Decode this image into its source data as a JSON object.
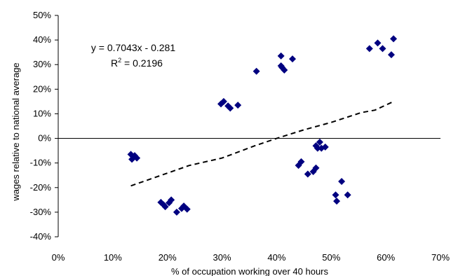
{
  "chart_data": {
    "type": "scatter",
    "xlabel": "% of occupation working over 40 hours",
    "ylabel": "wages relative to national average",
    "xlim": [
      0,
      70
    ],
    "ylim": [
      -40,
      50
    ],
    "x_ticks": [
      0,
      10,
      20,
      30,
      40,
      50,
      60,
      70
    ],
    "y_ticks": [
      -40,
      -30,
      -20,
      -10,
      0,
      10,
      20,
      30,
      40,
      50
    ],
    "x_tick_labels": [
      "0%",
      "10%",
      "20%",
      "30%",
      "40%",
      "50%",
      "60%",
      "70%"
    ],
    "y_tick_labels": [
      "-40%",
      "-30%",
      "-20%",
      "-10%",
      "0%",
      "10%",
      "20%",
      "30%",
      "40%",
      "50%"
    ],
    "marker_color": "#000080",
    "grid": false,
    "legend": "none",
    "annotation": {
      "line1": "y = 0.7043x - 0.281",
      "line2_prefix": "R",
      "line2_sup": "2",
      "line2_suffix": " = 0.2196"
    },
    "points": [
      {
        "x": 13.3,
        "y": -6.5
      },
      {
        "x": 14.0,
        "y": -7.0
      },
      {
        "x": 14.4,
        "y": -8.0
      },
      {
        "x": 13.5,
        "y": -8.5
      },
      {
        "x": 18.8,
        "y": -26.0
      },
      {
        "x": 19.3,
        "y": -27.0
      },
      {
        "x": 19.6,
        "y": -27.8
      },
      {
        "x": 20.3,
        "y": -26.2
      },
      {
        "x": 20.7,
        "y": -25.0
      },
      {
        "x": 21.7,
        "y": -30.0
      },
      {
        "x": 22.6,
        "y": -28.5
      },
      {
        "x": 23.0,
        "y": -27.5
      },
      {
        "x": 23.6,
        "y": -28.8
      },
      {
        "x": 29.8,
        "y": 14.0
      },
      {
        "x": 30.3,
        "y": 15.0
      },
      {
        "x": 31.1,
        "y": 13.2
      },
      {
        "x": 31.5,
        "y": 12.3
      },
      {
        "x": 32.9,
        "y": 13.5
      },
      {
        "x": 36.3,
        "y": 27.3
      },
      {
        "x": 40.8,
        "y": 29.5
      },
      {
        "x": 40.8,
        "y": 33.5
      },
      {
        "x": 41.0,
        "y": 28.8
      },
      {
        "x": 41.4,
        "y": 27.8
      },
      {
        "x": 42.9,
        "y": 32.3
      },
      {
        "x": 44.0,
        "y": -11.0
      },
      {
        "x": 44.5,
        "y": -9.5
      },
      {
        "x": 45.7,
        "y": -14.5
      },
      {
        "x": 46.7,
        "y": -13.5
      },
      {
        "x": 47.2,
        "y": -12.0
      },
      {
        "x": 47.2,
        "y": -3.0
      },
      {
        "x": 47.5,
        "y": -4.0
      },
      {
        "x": 47.9,
        "y": -1.5
      },
      {
        "x": 48.2,
        "y": -4.0
      },
      {
        "x": 48.9,
        "y": -3.5
      },
      {
        "x": 50.8,
        "y": -23.0
      },
      {
        "x": 51.0,
        "y": -25.5
      },
      {
        "x": 51.9,
        "y": -17.5
      },
      {
        "x": 53.0,
        "y": -23.0
      },
      {
        "x": 57.0,
        "y": 36.5
      },
      {
        "x": 58.5,
        "y": 38.8
      },
      {
        "x": 59.4,
        "y": 36.5
      },
      {
        "x": 61.0,
        "y": 34.0
      },
      {
        "x": 61.4,
        "y": 40.5
      }
    ],
    "trendline": {
      "style": "dashed",
      "points": [
        {
          "x": 13.3,
          "y": -19.3
        },
        {
          "x": 24.0,
          "y": -11.0
        },
        {
          "x": 30.0,
          "y": -8.0
        },
        {
          "x": 36.0,
          "y": -3.0
        },
        {
          "x": 40.0,
          "y": 0.0
        },
        {
          "x": 45.0,
          "y": 3.5
        },
        {
          "x": 50.0,
          "y": 6.5
        },
        {
          "x": 55.5,
          "y": 10.5
        },
        {
          "x": 58.0,
          "y": 11.5
        },
        {
          "x": 61.4,
          "y": 15.0
        }
      ]
    }
  }
}
